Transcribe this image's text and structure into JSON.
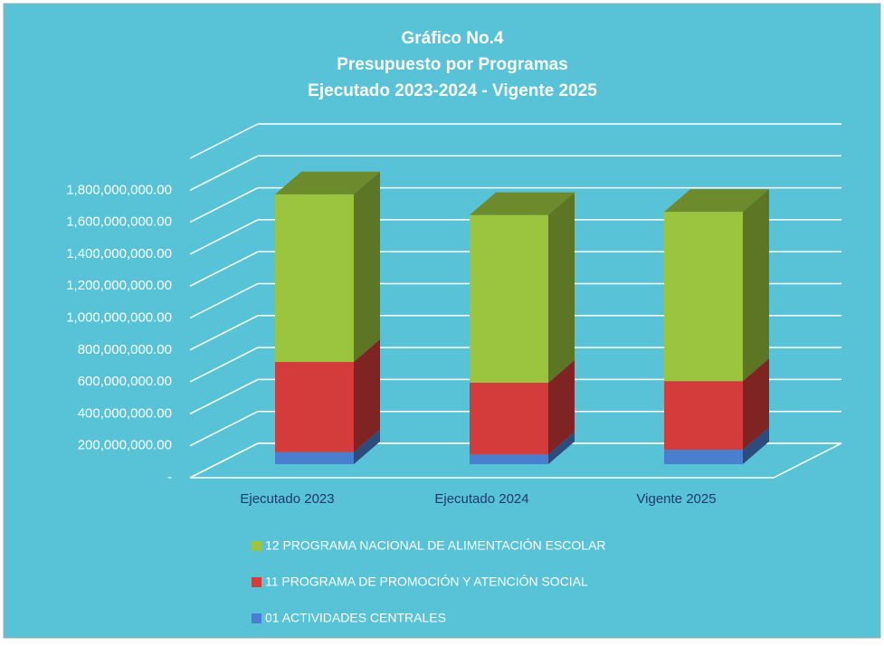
{
  "chart_data": {
    "type": "bar3d_stacked",
    "title": [
      "Gráfico No.4",
      "Presupuesto por Programas",
      "Ejecutado 2023-2024 - Vigente 2025"
    ],
    "categories": [
      "Ejecutado 2023",
      "Ejecutado 2024",
      "Vigente 2025"
    ],
    "series": [
      {
        "name": "01 ACTIVIDADES CENTRALES",
        "color": "#4a7fd0",
        "values": [
          75000000,
          60000000,
          90000000
        ]
      },
      {
        "name": "11 PROGRAMA DE PROMOCIÓN Y ATENCIÓN SOCIAL",
        "color": "#d43b3b",
        "values": [
          565000000,
          450000000,
          430000000
        ]
      },
      {
        "name": "12 PROGRAMA NACIONAL DE ALIMENTACIÓN ESCOLAR",
        "color": "#9bc53f",
        "values": [
          1050000000,
          1050000000,
          1060000000
        ]
      }
    ],
    "ylim": [
      0,
      2000000000
    ],
    "yticks": [
      {
        "value": 0,
        "label": "-"
      },
      {
        "value": 200000000,
        "label": "200,000,000.00"
      },
      {
        "value": 400000000,
        "label": "400,000,000.00"
      },
      {
        "value": 600000000,
        "label": "600,000,000.00"
      },
      {
        "value": 800000000,
        "label": "800,000,000.00"
      },
      {
        "value": 1000000000,
        "label": "1,000,000,000.00"
      },
      {
        "value": 1200000000,
        "label": "1,200,000,000.00"
      },
      {
        "value": 1400000000,
        "label": "1,400,000,000.00"
      },
      {
        "value": 1600000000,
        "label": "1,600,000,000.00"
      },
      {
        "value": 1800000000,
        "label": "1,800,000,000.00"
      }
    ],
    "grid": true,
    "legend": "bottom"
  }
}
